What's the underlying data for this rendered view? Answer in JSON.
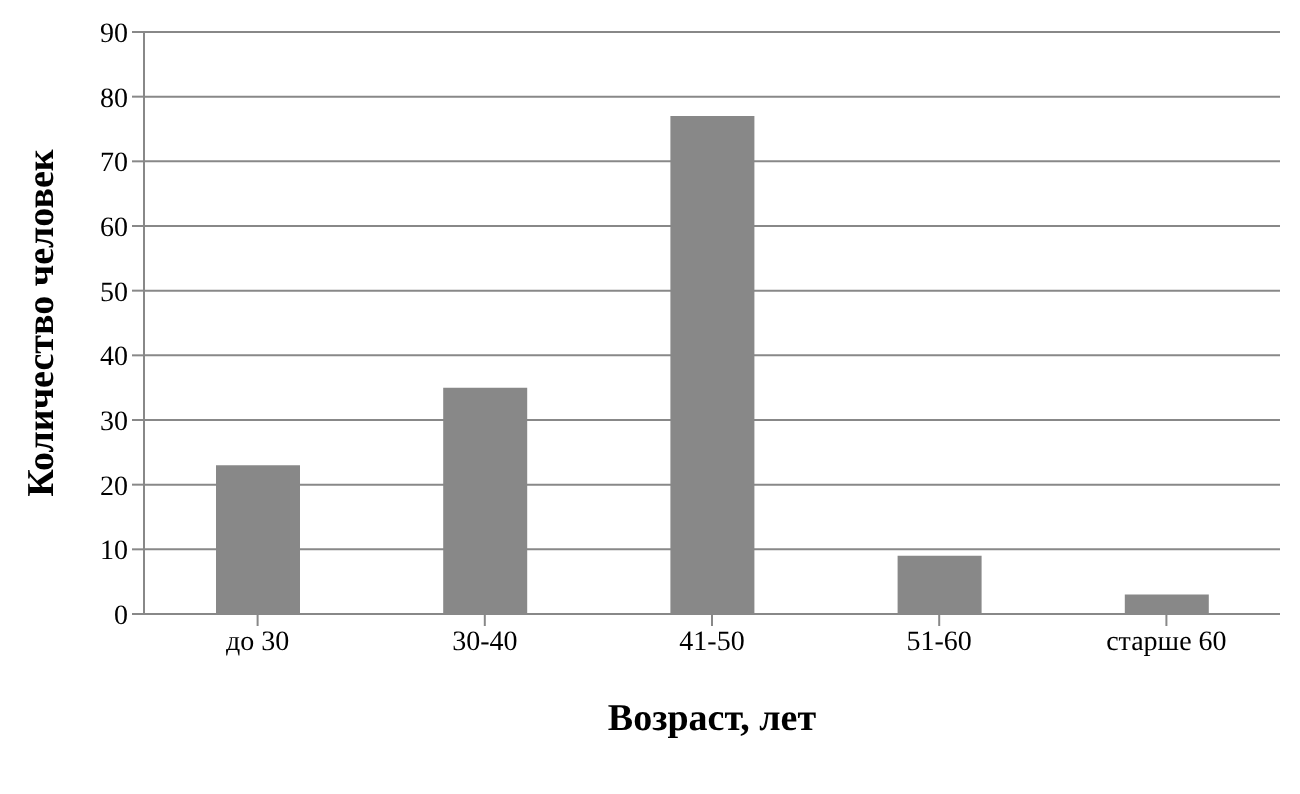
{
  "chart_data": {
    "type": "bar",
    "xlabel": "Возраст, лет",
    "ylabel": "Количество человек",
    "categories": [
      "до 30",
      "30-40",
      "41-50",
      "51-60",
      "старше 60"
    ],
    "values": [
      23,
      35,
      77,
      9,
      3
    ],
    "color": "#888888",
    "ylim": [
      0,
      90
    ],
    "yticks": [
      0,
      10,
      20,
      30,
      40,
      50,
      60,
      70,
      80,
      90
    ],
    "grid": "y"
  }
}
